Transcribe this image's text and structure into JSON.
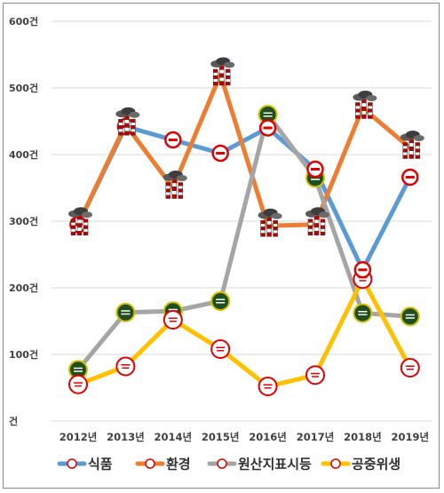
{
  "chart_data": {
    "type": "line",
    "categories": [
      "2012년",
      "2013년",
      "2014년",
      "2015년",
      "2016년",
      "2017년",
      "2018년",
      "2019년"
    ],
    "y_ticks": [
      "600건",
      "500건",
      "400건",
      "300건",
      "200건",
      "100건",
      "건"
    ],
    "ylim": [
      0,
      600
    ],
    "grid": true,
    "legend_position": "bottom",
    "series": [
      {
        "name": "식품",
        "color": "#5b9bd5",
        "marker": "red-badge-icon",
        "values": [
          295,
          442,
          422,
          402,
          440,
          378,
          227,
          366
        ]
      },
      {
        "name": "환경",
        "color": "#ed7d31",
        "marker": "factory-icon",
        "values": [
          295,
          445,
          350,
          520,
          293,
          295,
          470,
          410
        ]
      },
      {
        "name": "원산지표시등",
        "color": "#a5a5a5",
        "marker": "green-badge-icon",
        "values": [
          77,
          163,
          165,
          180,
          460,
          365,
          162,
          157
        ]
      },
      {
        "name": "공중위생",
        "color": "#ffc000",
        "marker": "red-ring-icon",
        "values": [
          55,
          82,
          152,
          108,
          52,
          69,
          213,
          80
        ]
      }
    ]
  }
}
